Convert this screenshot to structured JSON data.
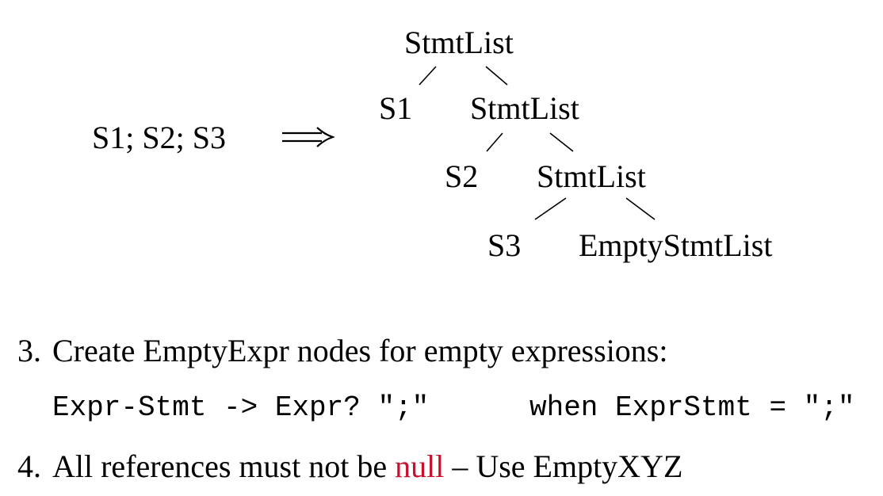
{
  "diagram": {
    "input_sequence": "S1; S2; S3",
    "arrow_symbol": "⟹",
    "tree": {
      "root_label": "StmtList",
      "s1_label": "S1",
      "list2_label": "StmtList",
      "s2_label": "S2",
      "list3_label": "StmtList",
      "s3_label": "S3",
      "empty_label": "EmptyStmtList"
    }
  },
  "list": {
    "item3": {
      "number": "3.",
      "text": "Create EmptyExpr nodes for empty expressions:",
      "code_rule": "Expr-Stmt -> Expr? \";\"",
      "code_when": "when ExprStmt = \";\""
    },
    "item4": {
      "number": "4.",
      "text_before": "All references must not be ",
      "highlight": "null",
      "text_after": " – Use EmptyXYZ"
    }
  },
  "colors": {
    "highlight": "#c8102e",
    "text": "#000000",
    "background": "#ffffff"
  }
}
